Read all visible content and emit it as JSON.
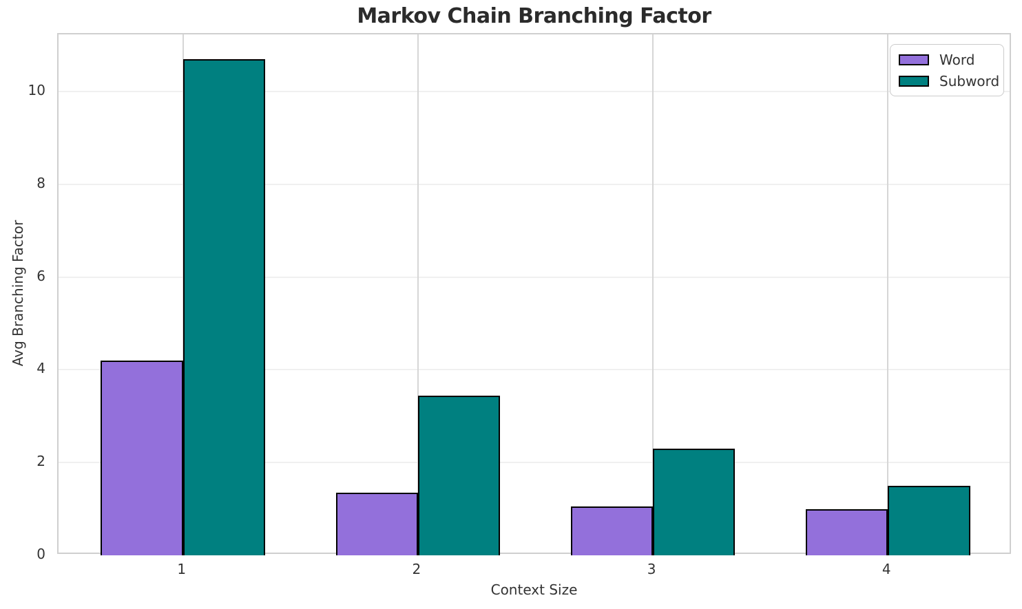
{
  "chart_data": {
    "type": "bar",
    "title": "Markov Chain Branching Factor",
    "xlabel": "Context Size",
    "ylabel": "Avg Branching Factor",
    "categories": [
      "1",
      "2",
      "3",
      "4"
    ],
    "series": [
      {
        "name": "Word",
        "color": "#9370DB",
        "values": [
          4.2,
          1.35,
          1.05,
          1.0
        ]
      },
      {
        "name": "Subword",
        "color": "#008080",
        "values": [
          10.7,
          3.45,
          2.3,
          1.5
        ]
      }
    ],
    "bar_edge_color": "#000000",
    "bar_width": 0.35,
    "yticks": [
      0,
      2,
      4,
      6,
      8,
      10
    ],
    "ylim": [
      0,
      11.235
    ],
    "xlim": [
      0.47,
      4.53
    ],
    "grid": true,
    "legend_position": "upper right",
    "colors": {
      "grid_horizontal": "#f0f0f0",
      "grid_vertical": "#d6d6d6",
      "spine": "#cfcfcf",
      "text": "#333333",
      "title": "#2b2b2b",
      "background": "#ffffff"
    }
  }
}
